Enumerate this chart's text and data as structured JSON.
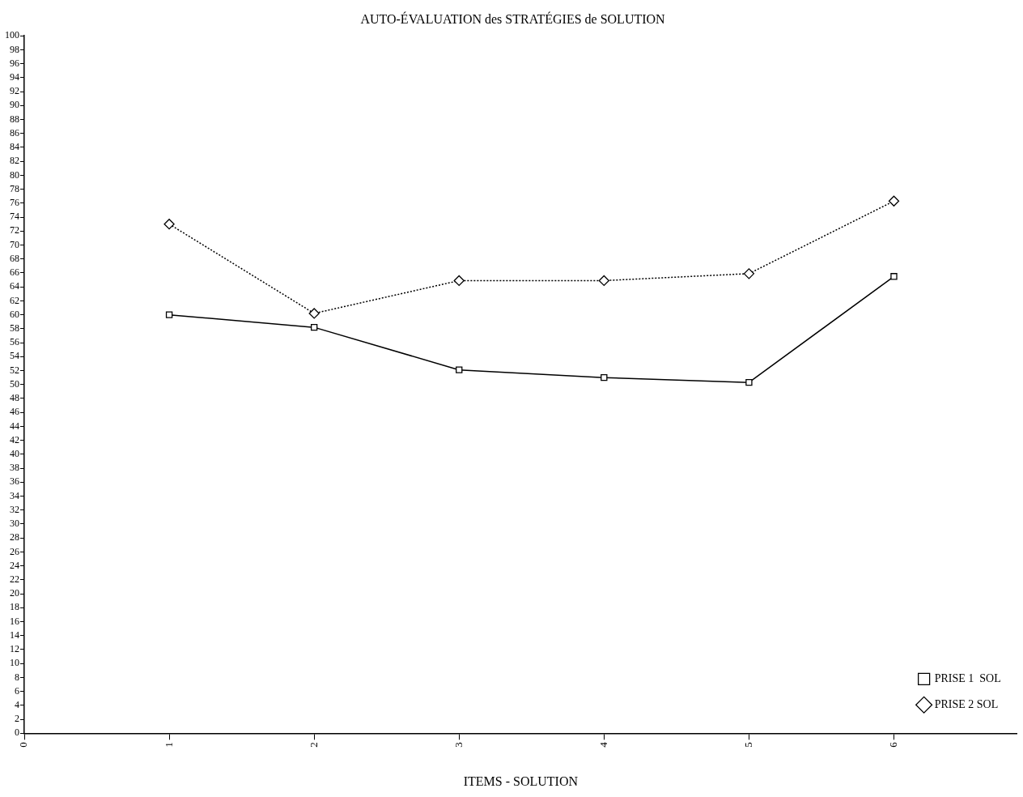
{
  "chart_data": {
    "type": "line",
    "title": "AUTO-ÉVALUATION des STRATÉGIES de SOLUTION",
    "xlabel": "ITEMS - SOLUTION",
    "x": [
      1,
      2,
      3,
      4,
      5,
      6
    ],
    "series": [
      {
        "name": "PRISE 1  SOL",
        "color": "#000000",
        "values": [
          60,
          58.2,
          52.1,
          51,
          50.3,
          65.5
        ],
        "marker": "square",
        "line_style": "solid"
      },
      {
        "name": "PRISE 2 SOL",
        "color": "#000000",
        "values": [
          73,
          60.2,
          64.9,
          64.9,
          65.9,
          76.3
        ],
        "marker": "diamond",
        "line_style": "dotted"
      }
    ],
    "xlim": [
      0,
      6.85
    ],
    "xticks": [
      0,
      1,
      2,
      3,
      4,
      5,
      6
    ],
    "ylim": [
      0,
      100
    ],
    "yticks": [
      0,
      2,
      4,
      6,
      8,
      10,
      12,
      14,
      16,
      18,
      20,
      22,
      24,
      26,
      28,
      30,
      32,
      34,
      36,
      38,
      40,
      42,
      44,
      46,
      48,
      50,
      52,
      54,
      56,
      58,
      60,
      62,
      64,
      66,
      68,
      70,
      72,
      74,
      76,
      78,
      80,
      82,
      84,
      86,
      88,
      90,
      92,
      94,
      96,
      98,
      100
    ],
    "grid": false,
    "legend": "bottom right"
  }
}
